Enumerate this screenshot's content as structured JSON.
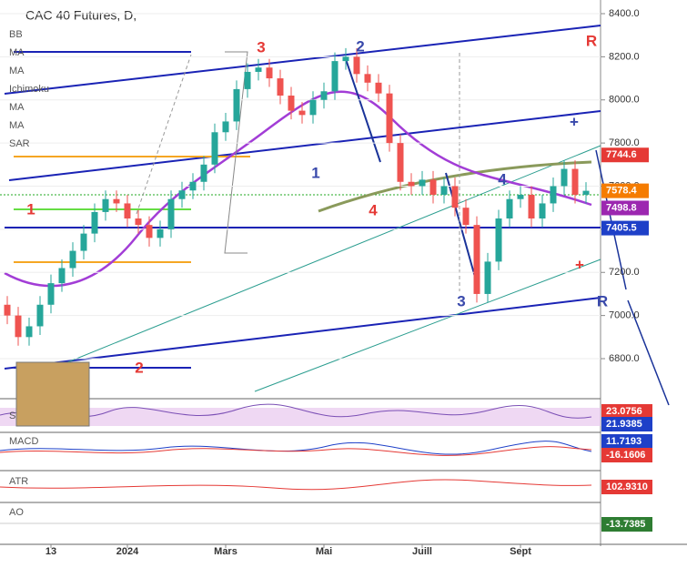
{
  "chart_data": {
    "type": "candlestick",
    "title": "CAC 40 Futures, D,",
    "indicators": [
      "BB",
      "MA",
      "MA",
      "Ichimoku",
      "MA",
      "MA",
      "SAR"
    ],
    "open": [
      7050,
      7000,
      6900,
      6950,
      7050,
      7150,
      7220,
      7300,
      7380,
      7480,
      7540,
      7520,
      7450,
      7420,
      7360,
      7400,
      7540,
      7580,
      7620,
      7700,
      7850,
      7900,
      8050,
      8130,
      8150,
      8100,
      8020,
      7950,
      7930,
      8000,
      8040,
      8180,
      8200,
      8120,
      8080,
      8030,
      7800,
      7620,
      7600,
      7630,
      7560,
      7600,
      7500,
      7420,
      7100,
      7250,
      7450,
      7540,
      7560,
      7450,
      7520,
      7600,
      7680,
      7560
    ],
    "high": [
      7090,
      7040,
      6990,
      7090,
      7190,
      7260,
      7340,
      7420,
      7520,
      7580,
      7580,
      7560,
      7490,
      7460,
      7440,
      7580,
      7620,
      7660,
      7740,
      7890,
      7940,
      8090,
      8170,
      8190,
      8190,
      8140,
      8060,
      7990,
      8040,
      8080,
      8220,
      8240,
      8240,
      8160,
      8120,
      8070,
      7840,
      7660,
      7670,
      7670,
      7640,
      7640,
      7540,
      7460,
      7290,
      7490,
      7580,
      7600,
      7600,
      7560,
      7640,
      7720,
      7720,
      7618.4
    ],
    "low": [
      6960,
      6860,
      6860,
      6910,
      7010,
      7110,
      7180,
      7260,
      7340,
      7440,
      7480,
      7410,
      7380,
      7320,
      7320,
      7360,
      7500,
      7540,
      7580,
      7660,
      7810,
      7860,
      8010,
      8090,
      8060,
      7980,
      7910,
      7890,
      7890,
      7960,
      8000,
      8140,
      8080,
      8040,
      7990,
      7760,
      7580,
      7560,
      7560,
      7520,
      7520,
      7460,
      7380,
      7060,
      7060,
      7210,
      7410,
      7500,
      7410,
      7410,
      7480,
      7560,
      7520,
      7520
    ],
    "close": [
      7000,
      6900,
      6950,
      7050,
      7150,
      7220,
      7300,
      7380,
      7480,
      7540,
      7520,
      7450,
      7420,
      7360,
      7400,
      7540,
      7580,
      7620,
      7700,
      7850,
      7900,
      8050,
      8130,
      8150,
      8100,
      8020,
      7950,
      7930,
      8000,
      8040,
      8180,
      8200,
      8120,
      8080,
      8030,
      7800,
      7620,
      7600,
      7630,
      7560,
      7600,
      7500,
      7420,
      7100,
      7250,
      7450,
      7540,
      7560,
      7450,
      7520,
      7600,
      7680,
      7560,
      7578.4
    ],
    "up_color": "#26a69a",
    "down_color": "#ef5350",
    "ylim": [
      6700,
      8450
    ],
    "yticks": [
      {
        "value": 6800,
        "label": "6800.0"
      },
      {
        "value": 7000,
        "label": "7000.0"
      },
      {
        "value": 7200,
        "label": "7200.0"
      },
      {
        "value": 7400,
        "label": "7400.0"
      },
      {
        "value": 7600,
        "label": "7600.0"
      },
      {
        "value": 7800,
        "label": "7800.0"
      },
      {
        "value": 8000,
        "label": "8000.0"
      },
      {
        "value": 8200,
        "label": "8200.0"
      },
      {
        "value": 8400,
        "label": "8400.0"
      }
    ],
    "xticks": [
      {
        "value": 4,
        "label": "13"
      },
      {
        "value": 11,
        "label": "2024"
      },
      {
        "value": 20,
        "label": "Mars"
      },
      {
        "value": 29,
        "label": "Mai"
      },
      {
        "value": 38,
        "label": "Juill"
      },
      {
        "value": 47,
        "label": "Sept"
      }
    ],
    "price_tags": [
      {
        "value": 7744.6,
        "color": "#e53935"
      },
      {
        "value": 7578.4,
        "color": "#f57c00"
      },
      {
        "value": 7498.8,
        "color": "#9c27b0"
      },
      {
        "value": 7405.5,
        "color": "#1e40c8"
      }
    ],
    "annotations": [
      {
        "text": "3",
        "color": "#e53935"
      },
      {
        "text": "2",
        "color": "#3949ab"
      },
      {
        "text": "R",
        "color": "#e53935"
      },
      {
        "text": "1",
        "color": "#e53935"
      },
      {
        "text": "1",
        "color": "#3949ab"
      },
      {
        "text": "4",
        "color": "#e53935"
      },
      {
        "text": "4",
        "color": "#3949ab"
      },
      {
        "text": "3",
        "color": "#3949ab"
      },
      {
        "text": "2",
        "color": "#e53935"
      },
      {
        "text": "R",
        "color": "#3949ab"
      },
      {
        "text": "+",
        "color": "#3949ab"
      },
      {
        "text": "+",
        "color": "#e53935"
      }
    ],
    "panels": [
      {
        "name": "S",
        "tags": [
          {
            "value": 23.0756,
            "color": "#e53935"
          },
          {
            "value": 21.9385,
            "color": "#1e40c8"
          }
        ]
      },
      {
        "name": "MACD",
        "tags": [
          {
            "value": 11.7193,
            "color": "#1e40c8"
          },
          {
            "value": -16.1606,
            "color": "#e53935"
          }
        ]
      },
      {
        "name": "ATR",
        "tags": [
          {
            "value": 102.931,
            "label": "102.9310",
            "color": "#e53935"
          }
        ]
      },
      {
        "name": "AO",
        "tags": [
          {
            "value": -13.7385,
            "color": "#2e7d32"
          }
        ]
      }
    ]
  }
}
